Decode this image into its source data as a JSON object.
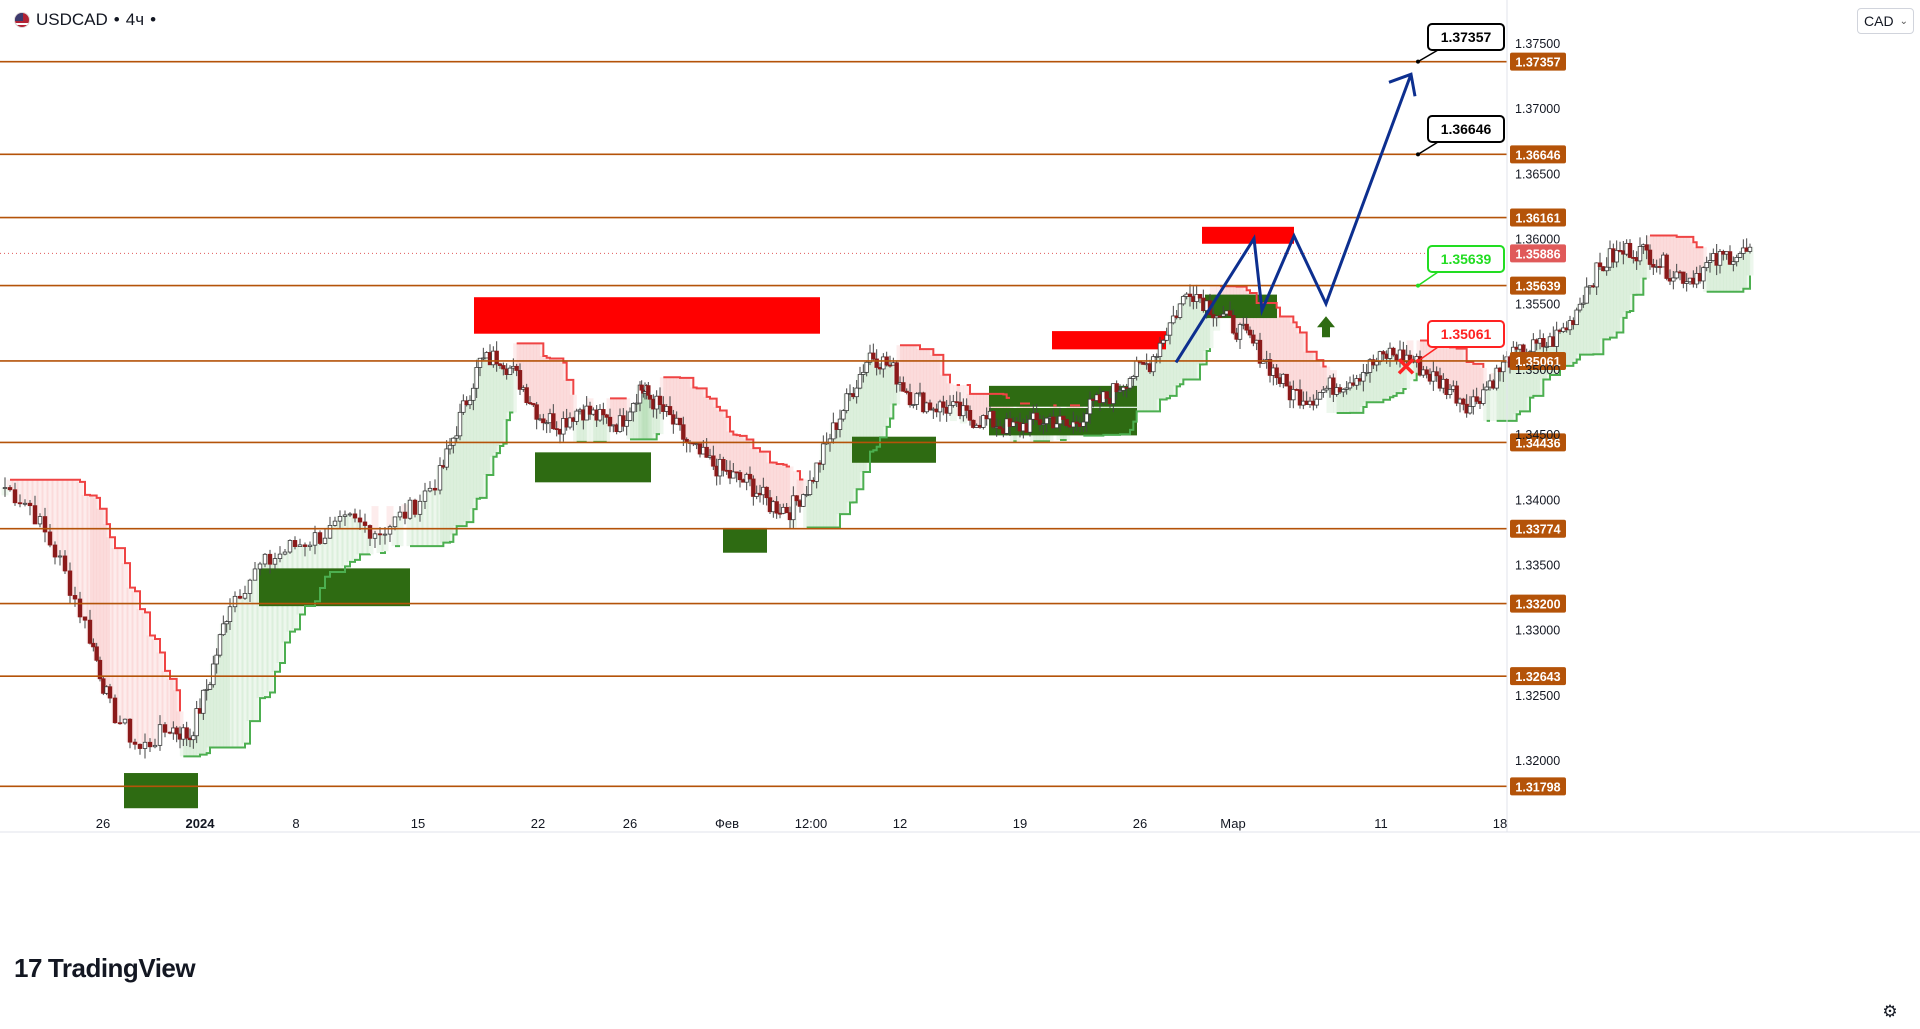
{
  "symbol": {
    "name": "USDCAD",
    "interval": "4ч"
  },
  "currency": "CAD",
  "brand": "TradingView",
  "current_price": "1.35886",
  "chart_data": {
    "type": "candlestick",
    "ylim": [
      1.3155,
      1.3785
    ],
    "y_ticks": [
      "1.37500",
      "1.37000",
      "1.36500",
      "1.36000",
      "1.35500",
      "1.35000",
      "1.34500",
      "1.34000",
      "1.33500",
      "1.33000",
      "1.32500",
      "1.32000"
    ],
    "x_ticks": [
      "26",
      "2024",
      "8",
      "15",
      "22",
      "26",
      "Фев",
      "12:00",
      "12",
      "19",
      "26",
      "Мар",
      "11",
      "18"
    ],
    "levels": [
      {
        "value": 1.37357,
        "label": "1.37357"
      },
      {
        "value": 1.36646,
        "label": "1.36646"
      },
      {
        "value": 1.36161,
        "label": "1.36161"
      },
      {
        "value": 1.35639,
        "label": "1.35639"
      },
      {
        "value": 1.35061,
        "label": "1.35061"
      },
      {
        "value": 1.34436,
        "label": "1.34436"
      },
      {
        "value": 1.33774,
        "label": "1.33774"
      },
      {
        "value": 1.332,
        "label": "1.33200"
      },
      {
        "value": 1.32643,
        "label": "1.32643"
      },
      {
        "value": 1.31798,
        "label": "1.31798"
      }
    ],
    "callouts": [
      {
        "label": "1.37357",
        "style": "target"
      },
      {
        "label": "1.36646",
        "style": "target"
      },
      {
        "label": "1.35639",
        "style": "entry"
      },
      {
        "label": "1.35061",
        "style": "stop"
      }
    ],
    "close_path": [
      [
        0.0,
        1.3412
      ],
      [
        0.03,
        1.3395
      ],
      [
        0.06,
        1.3352
      ],
      [
        0.09,
        1.3295
      ],
      [
        0.11,
        1.324
      ],
      [
        0.14,
        1.3208
      ],
      [
        0.17,
        1.3225
      ],
      [
        0.19,
        1.3218
      ],
      [
        0.21,
        1.3262
      ],
      [
        0.23,
        1.3322
      ],
      [
        0.26,
        1.3348
      ],
      [
        0.29,
        1.3363
      ],
      [
        0.32,
        1.3372
      ],
      [
        0.35,
        1.3383
      ],
      [
        0.38,
        1.3375
      ],
      [
        0.41,
        1.3392
      ],
      [
        0.44,
        1.3418
      ],
      [
        0.46,
        1.3462
      ],
      [
        0.48,
        1.3505
      ],
      [
        0.5,
        1.351
      ],
      [
        0.52,
        1.349
      ],
      [
        0.54,
        1.3464
      ],
      [
        0.56,
        1.3458
      ],
      [
        0.58,
        1.347
      ],
      [
        0.6,
        1.3462
      ],
      [
        0.62,
        1.3458
      ],
      [
        0.64,
        1.3486
      ],
      [
        0.65,
        1.3478
      ],
      [
        0.67,
        1.3462
      ],
      [
        0.69,
        1.344
      ],
      [
        0.71,
        1.3428
      ],
      [
        0.73,
        1.3418
      ],
      [
        0.75,
        1.3412
      ],
      [
        0.77,
        1.3396
      ],
      [
        0.79,
        1.3392
      ],
      [
        0.81,
        1.3412
      ],
      [
        0.83,
        1.3448
      ],
      [
        0.85,
        1.348
      ],
      [
        0.87,
        1.3512
      ],
      [
        0.89,
        1.3502
      ],
      [
        0.91,
        1.348
      ],
      [
        0.93,
        1.3472
      ],
      [
        0.95,
        1.347
      ],
      [
        0.97,
        1.3462
      ],
      [
        0.99,
        1.346
      ],
      [
        1.01,
        1.3454
      ],
      [
        1.03,
        1.3458
      ],
      [
        1.05,
        1.3462
      ],
      [
        1.07,
        1.3455
      ],
      [
        1.09,
        1.347
      ],
      [
        1.11,
        1.348
      ],
      [
        1.13,
        1.3495
      ],
      [
        1.15,
        1.3505
      ],
      [
        1.17,
        1.3535
      ],
      [
        1.19,
        1.3562
      ],
      [
        1.21,
        1.3548
      ],
      [
        1.23,
        1.3535
      ],
      [
        1.25,
        1.3522
      ],
      [
        1.27,
        1.3502
      ],
      [
        1.29,
        1.3482
      ],
      [
        1.31,
        1.3478
      ],
      [
        1.33,
        1.3486
      ],
      [
        1.35,
        1.3492
      ],
      [
        1.37,
        1.3502
      ],
      [
        1.39,
        1.3512
      ],
      [
        1.41,
        1.3508
      ],
      [
        1.43,
        1.3495
      ],
      [
        1.45,
        1.3485
      ],
      [
        1.47,
        1.3472
      ],
      [
        1.49,
        1.349
      ],
      [
        1.51,
        1.3508
      ],
      [
        1.53,
        1.3515
      ],
      [
        1.55,
        1.352
      ],
      [
        1.57,
        1.3535
      ],
      [
        1.59,
        1.3568
      ],
      [
        1.61,
        1.3585
      ],
      [
        1.63,
        1.3592
      ],
      [
        1.65,
        1.3588
      ],
      [
        1.67,
        1.3575
      ],
      [
        1.69,
        1.357
      ],
      [
        1.71,
        1.358
      ],
      [
        1.73,
        1.3588
      ],
      [
        1.75,
        1.3589
      ]
    ],
    "forecast_path": [
      [
        1.3505,
        "a"
      ],
      [
        1.36,
        "b"
      ],
      [
        1.3545,
        "c"
      ],
      [
        1.3602,
        "d"
      ],
      [
        1.355,
        "e"
      ],
      [
        1.3726,
        "f"
      ]
    ],
    "supply_zones": [
      {
        "from": 1.3555,
        "to": 1.3527
      },
      {
        "from": 1.3609,
        "to": 1.3596
      },
      {
        "from": 1.3529,
        "to": 1.3515
      }
    ],
    "demand_zones": [
      {
        "from": 1.3436,
        "to": 1.3413
      },
      {
        "from": 1.3487,
        "to": 1.3471
      },
      {
        "from": 1.3378,
        "to": 1.3359
      },
      {
        "from": 1.3448,
        "to": 1.3428
      },
      {
        "from": 1.347,
        "to": 1.3449
      },
      {
        "from": 1.3347,
        "to": 1.3318
      },
      {
        "from": 1.3557,
        "to": 1.3539
      },
      {
        "from": 1.319,
        "to": 1.3163
      }
    ]
  },
  "colors": {
    "level": "#b45309",
    "supply": "#ff0000",
    "demand": "#2e6b12",
    "forecast": "#0d2f8f",
    "up_candle": "#3a3a3a",
    "down_candle": "#8b1a1a",
    "trail_red": "#ef4444",
    "trail_green": "#4caf50",
    "current_price_bg": "#e05a5a",
    "entry": "#22dd22",
    "stop": "#ff2222"
  },
  "icons": {
    "arrow": "up-arrow-icon",
    "stop": "x-icon",
    "settings": "gear-icon"
  }
}
